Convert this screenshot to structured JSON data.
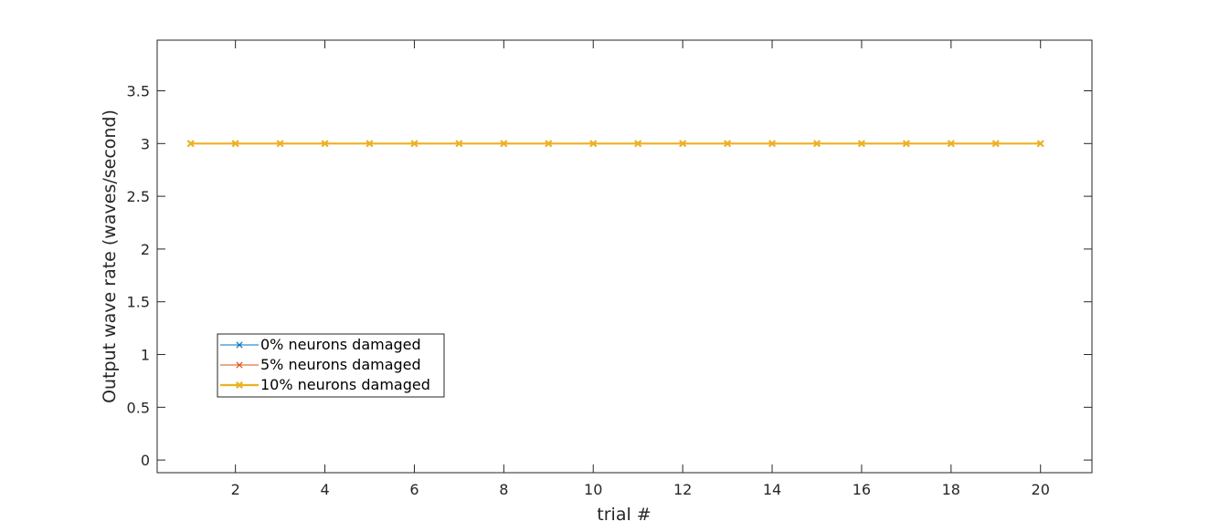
{
  "chart_data": {
    "type": "line",
    "xlabel": "trial #",
    "ylabel": "Output wave rate (waves/second)",
    "xlim": [
      0.25,
      21.15
    ],
    "ylim": [
      -0.12,
      3.98
    ],
    "xticks": [
      2,
      4,
      6,
      8,
      10,
      12,
      14,
      16,
      18,
      20
    ],
    "yticks": [
      0,
      0.5,
      1,
      1.5,
      2,
      2.5,
      3,
      3.5
    ],
    "xtick_labels": [
      "2",
      "4",
      "6",
      "8",
      "10",
      "12",
      "14",
      "16",
      "18",
      "20"
    ],
    "ytick_labels": [
      "0",
      "0.5",
      "1",
      "1.5",
      "2",
      "2.5",
      "3",
      "3.5"
    ],
    "grid": false,
    "legend_position": "lower-left",
    "x": [
      1,
      2,
      3,
      4,
      5,
      6,
      7,
      8,
      9,
      10,
      11,
      12,
      13,
      14,
      15,
      16,
      17,
      18,
      19,
      20
    ],
    "series": [
      {
        "name": "0% neurons damaged",
        "color": "#0072bd",
        "marker": "x",
        "line_width": "thin",
        "values": [
          3,
          3,
          3,
          3,
          3,
          3,
          3,
          3,
          3,
          3,
          3,
          3,
          3,
          3,
          3,
          3,
          3,
          3,
          3,
          3
        ]
      },
      {
        "name": "5% neurons damaged",
        "color": "#d95319",
        "marker": "x",
        "line_width": "thin",
        "values": [
          3,
          3,
          3,
          3,
          3,
          3,
          3,
          3,
          3,
          3,
          3,
          3,
          3,
          3,
          3,
          3,
          3,
          3,
          3,
          3
        ]
      },
      {
        "name": "10% neurons damaged",
        "color": "#edb120",
        "marker": "x",
        "line_width": "thick",
        "values": [
          3,
          3,
          3,
          3,
          3,
          3,
          3,
          3,
          3,
          3,
          3,
          3,
          3,
          3,
          3,
          3,
          3,
          3,
          3,
          3
        ]
      }
    ]
  }
}
